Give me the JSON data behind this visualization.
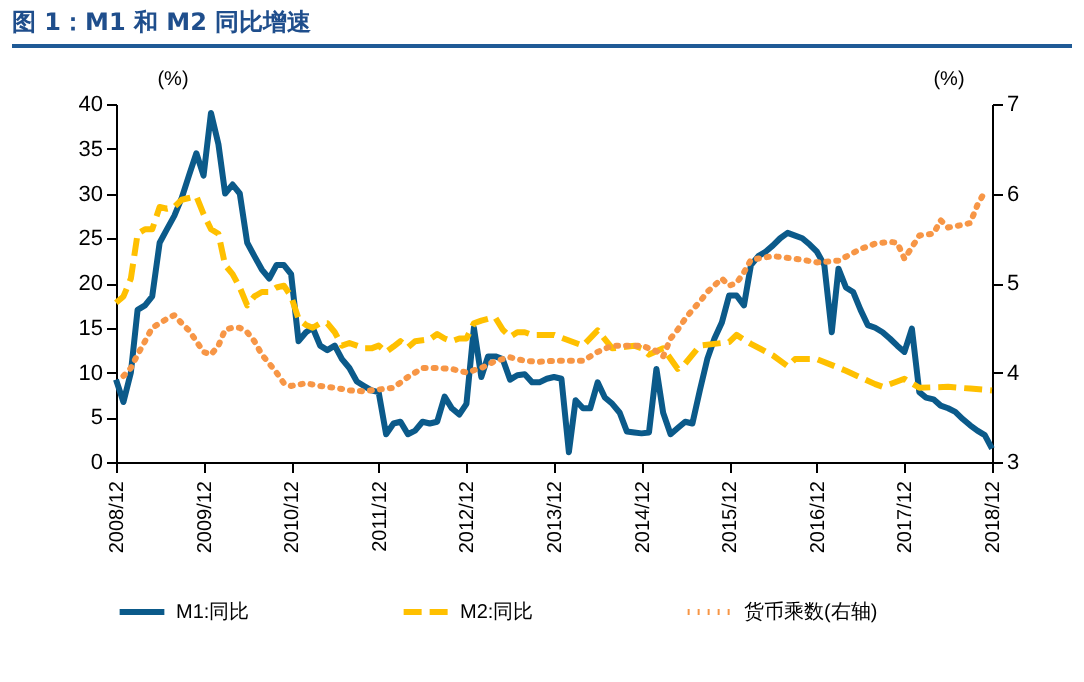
{
  "chart_data": {
    "type": "line",
    "title": "图 1：M1 和 M2 同比增速",
    "ylabel": "(%)",
    "y2label": "(%)",
    "xlim": [
      "2008-12",
      "2018-12"
    ],
    "xticks": [
      {
        "value": "2008-12",
        "label": "2008/12"
      },
      {
        "value": "2009-12",
        "label": "2009/12"
      },
      {
        "value": "2010-12",
        "label": "2010/12"
      },
      {
        "value": "2011-12",
        "label": "2011/12"
      },
      {
        "value": "2012-12",
        "label": "2012/12"
      },
      {
        "value": "2013-12",
        "label": "2013/12"
      },
      {
        "value": "2014-12",
        "label": "2014/12"
      },
      {
        "value": "2015-12",
        "label": "2015/12"
      },
      {
        "value": "2016-12",
        "label": "2016/12"
      },
      {
        "value": "2017-12",
        "label": "2017/12"
      },
      {
        "value": "2018-12",
        "label": "2018/12"
      }
    ],
    "ylim": [
      0,
      40
    ],
    "yticks": [
      0,
      5,
      10,
      15,
      20,
      25,
      30,
      35,
      40
    ],
    "y2lim": [
      3,
      7
    ],
    "y2ticks": [
      3,
      4,
      5,
      6,
      7
    ],
    "grid": false,
    "legend": "bottom",
    "marker": "none",
    "series": [
      {
        "name": "M1:同比",
        "color": "#0b5a8a",
        "line_style": "solid",
        "x": [
          "2008-12",
          "2009-01",
          "2009-02",
          "2009-03",
          "2009-04",
          "2009-05",
          "2009-06",
          "2009-07",
          "2009-08",
          "2009-09",
          "2009-10",
          "2009-11",
          "2009-12",
          "2010-01",
          "2010-02",
          "2010-03",
          "2010-04",
          "2010-05",
          "2010-06",
          "2010-07",
          "2010-08",
          "2010-09",
          "2010-10",
          "2010-11",
          "2010-12",
          "2011-01",
          "2011-02",
          "2011-03",
          "2011-04",
          "2011-05",
          "2011-06",
          "2011-07",
          "2011-08",
          "2011-09",
          "2011-10",
          "2011-11",
          "2011-12",
          "2012-01",
          "2012-02",
          "2012-03",
          "2012-04",
          "2012-05",
          "2012-06",
          "2012-07",
          "2012-08",
          "2012-09",
          "2012-10",
          "2012-11",
          "2012-12",
          "2013-01",
          "2013-02",
          "2013-03",
          "2013-04",
          "2013-05",
          "2013-06",
          "2013-07",
          "2013-08",
          "2013-09",
          "2013-10",
          "2013-11",
          "2013-12",
          "2014-01",
          "2014-02",
          "2014-03",
          "2014-04",
          "2014-05",
          "2014-06",
          "2014-07",
          "2014-08",
          "2014-09",
          "2014-10",
          "2014-11",
          "2014-12",
          "2015-01",
          "2015-02",
          "2015-03",
          "2015-04",
          "2015-05",
          "2015-06",
          "2015-07",
          "2015-08",
          "2015-09",
          "2015-10",
          "2015-11",
          "2015-12",
          "2016-01",
          "2016-02",
          "2016-03",
          "2016-04",
          "2016-05",
          "2016-06",
          "2016-07",
          "2016-08",
          "2016-09",
          "2016-10",
          "2016-11",
          "2016-12",
          "2017-01",
          "2017-02",
          "2017-03",
          "2017-04",
          "2017-05",
          "2017-06",
          "2017-07",
          "2017-08",
          "2017-09",
          "2017-10",
          "2017-11",
          "2017-12",
          "2018-01",
          "2018-02",
          "2018-03",
          "2018-04",
          "2018-05",
          "2018-06",
          "2018-07",
          "2018-08",
          "2018-09",
          "2018-10",
          "2018-11",
          "2018-12"
        ],
        "values": [
          9.2,
          6.7,
          10,
          17,
          17.5,
          18.5,
          24.5,
          26,
          27.5,
          29.5,
          32,
          34.5,
          32,
          39,
          35.5,
          30,
          31,
          30,
          24.5,
          23,
          21.5,
          20.5,
          22,
          22,
          21,
          13.5,
          14.5,
          15,
          13,
          12.5,
          13,
          11.5,
          10.5,
          9,
          8.5,
          8,
          7.8,
          3.1,
          4.3,
          4.5,
          3.1,
          3.5,
          4.5,
          4.3,
          4.5,
          7.3,
          6,
          5.3,
          6.5,
          15,
          9.5,
          11.8,
          11.8,
          11.5,
          9.2,
          9.7,
          9.8,
          8.9,
          8.9,
          9.3,
          9.5,
          9.3,
          1.1,
          6.9,
          6,
          6,
          8.9,
          7.2,
          6.5,
          5.5,
          3.4,
          3.3,
          3.2,
          3.3,
          10.4,
          5.5,
          3.1,
          3.8,
          4.5,
          4.3,
          8,
          11.5,
          13.8,
          15.6,
          18.6,
          18.6,
          17.5,
          22,
          23,
          23.5,
          24.2,
          25,
          25.6,
          25.3,
          25,
          24.3,
          23.5,
          22,
          14.5,
          21.6,
          19.5,
          19,
          17,
          15.3,
          15,
          14.5,
          13.8,
          13,
          12.3,
          14.9,
          7.8,
          7.2,
          7,
          6.3,
          6,
          5.6,
          4.8,
          4.1,
          3.5,
          3,
          1.5
        ]
      },
      {
        "name": "M2:同比",
        "color": "#ffc000",
        "line_style": "dashed",
        "x": [
          "2008-12",
          "2009-01",
          "2009-02",
          "2009-03",
          "2009-04",
          "2009-05",
          "2009-06",
          "2009-07",
          "2009-08",
          "2009-09",
          "2009-10",
          "2009-11",
          "2009-12",
          "2010-01",
          "2010-02",
          "2010-03",
          "2010-04",
          "2010-05",
          "2010-06",
          "2010-07",
          "2010-08",
          "2010-09",
          "2010-10",
          "2010-11",
          "2010-12",
          "2011-01",
          "2011-02",
          "2011-03",
          "2011-04",
          "2011-05",
          "2011-06",
          "2011-07",
          "2011-08",
          "2011-09",
          "2011-10",
          "2011-11",
          "2011-12",
          "2012-01",
          "2012-02",
          "2012-03",
          "2012-04",
          "2012-05",
          "2012-06",
          "2012-07",
          "2012-08",
          "2012-09",
          "2012-10",
          "2012-11",
          "2012-12",
          "2013-01",
          "2013-02",
          "2013-03",
          "2013-04",
          "2013-05",
          "2013-06",
          "2013-07",
          "2013-08",
          "2013-09",
          "2013-10",
          "2013-11",
          "2013-12",
          "2014-04",
          "2014-06",
          "2014-08",
          "2014-11",
          "2014-12",
          "2015-01",
          "2015-03",
          "2015-05",
          "2015-06",
          "2015-08",
          "2015-12",
          "2016-01",
          "2016-03",
          "2016-06",
          "2016-08",
          "2016-09",
          "2016-12",
          "2017-04",
          "2017-08",
          "2017-09",
          "2017-12",
          "2018-02",
          "2018-06",
          "2018-09",
          "2018-12"
        ],
        "values": [
          17.8,
          18.5,
          20.5,
          25.5,
          26,
          26,
          28.5,
          28.3,
          28.5,
          29.3,
          29.5,
          29.7,
          27.7,
          26,
          25.5,
          22,
          21,
          19.5,
          17.5,
          18.5,
          19,
          19,
          19.5,
          19.7,
          18.5,
          16,
          15.3,
          15,
          15.5,
          15.5,
          14.5,
          13,
          13.3,
          13,
          12.7,
          12.7,
          13,
          12.3,
          12.9,
          13.5,
          12.8,
          13.5,
          13.6,
          13.7,
          14.3,
          13.8,
          13.5,
          13.8,
          13.8,
          15.5,
          15.8,
          16,
          16.1,
          14.8,
          14,
          14.5,
          14.5,
          14.2,
          14.2,
          14.2,
          14.2,
          13,
          14.7,
          12.7,
          13,
          12.7,
          12,
          12.7,
          10.4,
          11,
          13,
          13.4,
          14.2,
          13.2,
          11.9,
          10.7,
          11.5,
          11.5,
          10.2,
          8.7,
          8.4,
          9.3,
          8.3,
          8.4,
          8.2,
          8
        ]
      },
      {
        "name": "货币乘数(右轴)",
        "color": "#f79646",
        "line_style": "dotted",
        "axis": "y2",
        "x": [
          "2009-01",
          "2009-02",
          "2009-03",
          "2009-04",
          "2009-05",
          "2009-06",
          "2009-07",
          "2009-08",
          "2009-09",
          "2009-10",
          "2009-11",
          "2009-12",
          "2010-01",
          "2010-02",
          "2010-03",
          "2010-04",
          "2010-05",
          "2010-06",
          "2010-07",
          "2010-08",
          "2010-09",
          "2010-10",
          "2010-11",
          "2010-12",
          "2011-02",
          "2011-04",
          "2011-06",
          "2011-08",
          "2011-10",
          "2011-12",
          "2012-02",
          "2012-04",
          "2012-06",
          "2012-08",
          "2012-10",
          "2012-12",
          "2013-02",
          "2013-04",
          "2013-06",
          "2013-08",
          "2013-10",
          "2013-12",
          "2014-02",
          "2014-04",
          "2014-06",
          "2014-08",
          "2014-10",
          "2014-12",
          "2015-02",
          "2015-03",
          "2015-04",
          "2015-05",
          "2015-06",
          "2015-07",
          "2015-08",
          "2015-09",
          "2015-11",
          "2015-12",
          "2016-01",
          "2016-02",
          "2016-03",
          "2016-06",
          "2016-10",
          "2016-12",
          "2017-03",
          "2017-06",
          "2017-08",
          "2017-10",
          "2017-11",
          "2017-12",
          "2018-01",
          "2018-02",
          "2018-04",
          "2018-05",
          "2018-06",
          "2018-08",
          "2018-09",
          "2018-10",
          "2018-11"
        ],
        "values": [
          3.96,
          4.05,
          4.2,
          4.35,
          4.5,
          4.55,
          4.6,
          4.64,
          4.55,
          4.47,
          4.35,
          4.23,
          4.2,
          4.3,
          4.48,
          4.5,
          4.5,
          4.45,
          4.35,
          4.2,
          4.1,
          4,
          3.88,
          3.85,
          3.88,
          3.85,
          3.83,
          3.8,
          3.79,
          3.81,
          3.83,
          3.95,
          4.05,
          4.05,
          4.04,
          4,
          4.05,
          4.13,
          4.17,
          4.13,
          4.12,
          4.13,
          4.13,
          4.13,
          4.23,
          4.3,
          4.3,
          4.3,
          4.24,
          4.18,
          4.38,
          4.48,
          4.6,
          4.7,
          4.79,
          4.9,
          5.05,
          4.97,
          5,
          5.12,
          5.26,
          5.3,
          5.26,
          5.23,
          5.25,
          5.38,
          5.44,
          5.46,
          5.45,
          5.27,
          5.4,
          5.53,
          5.55,
          5.7,
          5.62,
          5.65,
          5.67,
          5.87,
          6.02
        ]
      }
    ]
  }
}
